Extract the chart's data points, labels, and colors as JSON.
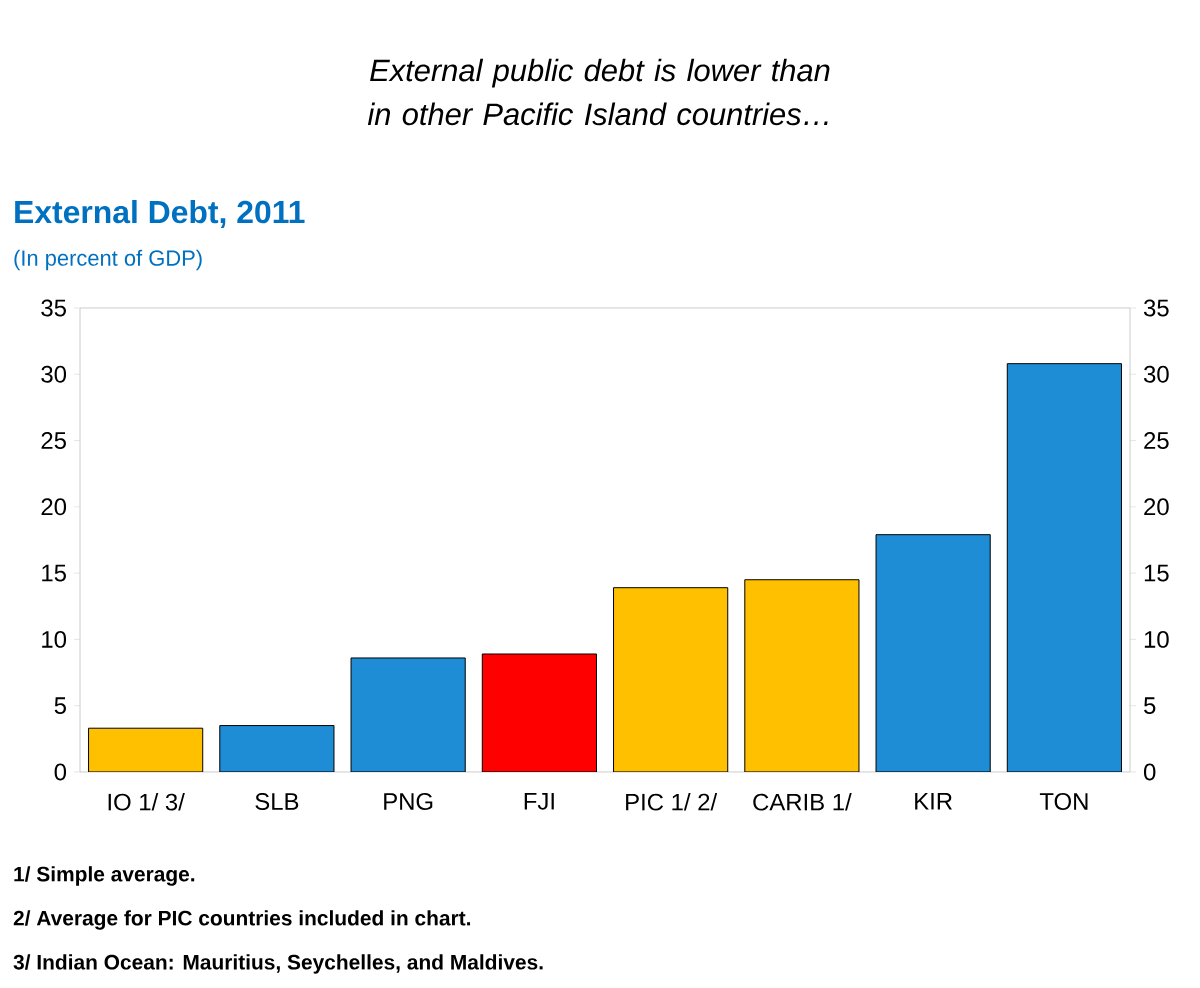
{
  "chart_data": {
    "type": "bar",
    "title": "External Debt, 2011",
    "subtitle": "(In percent of GDP)",
    "annotations": [
      "*External public debt is lower than in other Pacific Island countries…*",
      "**1/ Simple average.**",
      "**2/ Average for PIC countries included in chart.**",
      "**3/ Indian Ocean: Mauritius, Seychelles, and Maldives.**"
    ],
    "categories": [
      "IO 1/ 3/",
      "SLB",
      "PNG",
      "FJI",
      "PIC 1/ 2/",
      "CARIB 1/",
      "KIR",
      "TON"
    ],
    "values": [
      3.3,
      3.5,
      8.6,
      8.9,
      13.9,
      14.5,
      17.9,
      30.8
    ],
    "colors": [
      "#ffc000",
      "#1f8dd6",
      "#1f8dd6",
      "#ff0000",
      "#ffc000",
      "#ffc000",
      "#1f8dd6",
      "#1f8dd6"
    ],
    "ylim": [
      0,
      35
    ],
    "yticks": [
      0,
      5,
      10,
      15,
      20,
      25,
      30,
      35
    ],
    "y2lim": [
      0,
      35
    ],
    "y2ticks": [
      0,
      5,
      10,
      15,
      20,
      25,
      30,
      35
    ]
  }
}
